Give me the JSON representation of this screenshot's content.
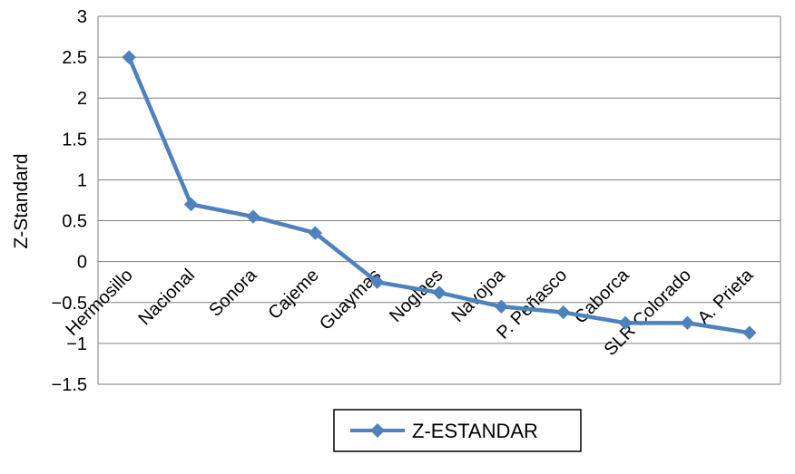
{
  "chart_data": {
    "type": "line",
    "title": "",
    "categories": [
      "Hermosillo",
      "Nacional",
      "Sonora",
      "Cajeme",
      "Guaymas",
      "Noglaes",
      "Navojoa",
      "P. Peñasco",
      "Caborca",
      "SLR Colorado",
      "A. Prieta"
    ],
    "series": [
      {
        "name": "Z-ESTANDAR",
        "values": [
          2.5,
          0.7,
          0.55,
          0.35,
          -0.25,
          -0.38,
          -0.55,
          -0.62,
          -0.75,
          -0.75,
          -0.87
        ]
      }
    ],
    "xlabel": "",
    "ylabel": "Z-Standard",
    "ylim": [
      -1.5,
      3
    ],
    "yticks": [
      3,
      2.5,
      2,
      1.5,
      1,
      0.5,
      0,
      -0.5,
      -1,
      -1.5
    ],
    "ytick_labels": [
      "3",
      "2.5",
      "2",
      "1.5",
      "1",
      "0.5",
      "0",
      "−0.5",
      "−1",
      "−1.5"
    ],
    "grid": true,
    "legend_position": "bottom",
    "marker": "diamond",
    "colors": {
      "series": "#4F81BD",
      "grid": "#7f7f7f",
      "text": "#000000",
      "legend_border": "#000000",
      "background": "#ffffff"
    }
  }
}
